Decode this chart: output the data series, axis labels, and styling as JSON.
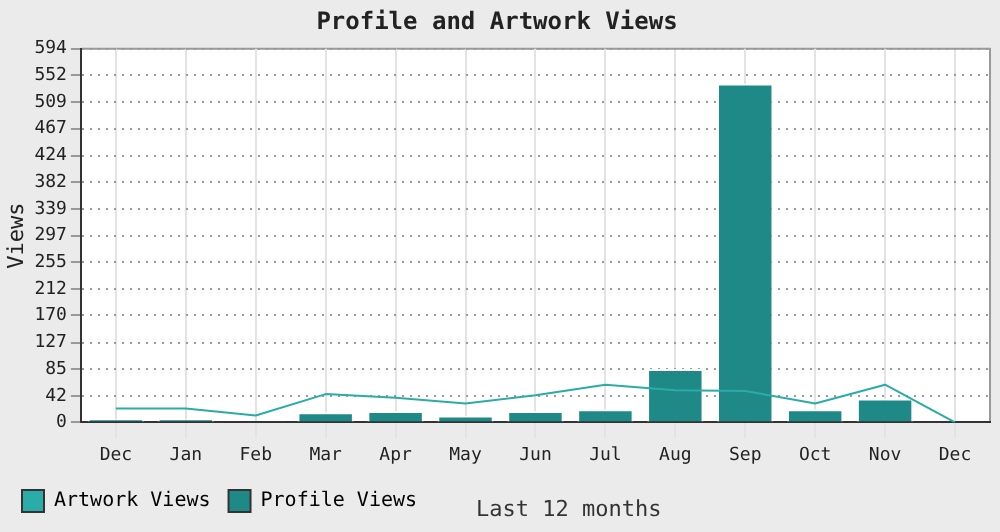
{
  "chart_data": {
    "type": "bar",
    "title": "Profile and Artwork Views",
    "xlabel": "Last 12 months",
    "ylabel": "Views",
    "categories": [
      "Dec",
      "Jan",
      "Feb",
      "Mar",
      "Apr",
      "May",
      "Jun",
      "Jul",
      "Aug",
      "Sep",
      "Oct",
      "Nov",
      "Dec"
    ],
    "series": [
      {
        "name": "Artwork Views",
        "type": "line",
        "color": "#2aaca8",
        "values": [
          22,
          22,
          11,
          45,
          39,
          30,
          43,
          60,
          51,
          50,
          30,
          60,
          0
        ]
      },
      {
        "name": "Profile Views",
        "color": "#1e8987",
        "values": [
          5,
          5,
          2,
          16,
          18,
          11,
          18,
          21,
          85,
          539,
          21,
          38,
          0
        ]
      }
    ],
    "ylim": [
      0,
      594
    ],
    "yticks": [
      0,
      42,
      85,
      127,
      170,
      212,
      255,
      297,
      339,
      382,
      424,
      467,
      509,
      552,
      594
    ],
    "grid": true,
    "legend": "bottom left",
    "marker": "none",
    "line_style": "solid"
  }
}
